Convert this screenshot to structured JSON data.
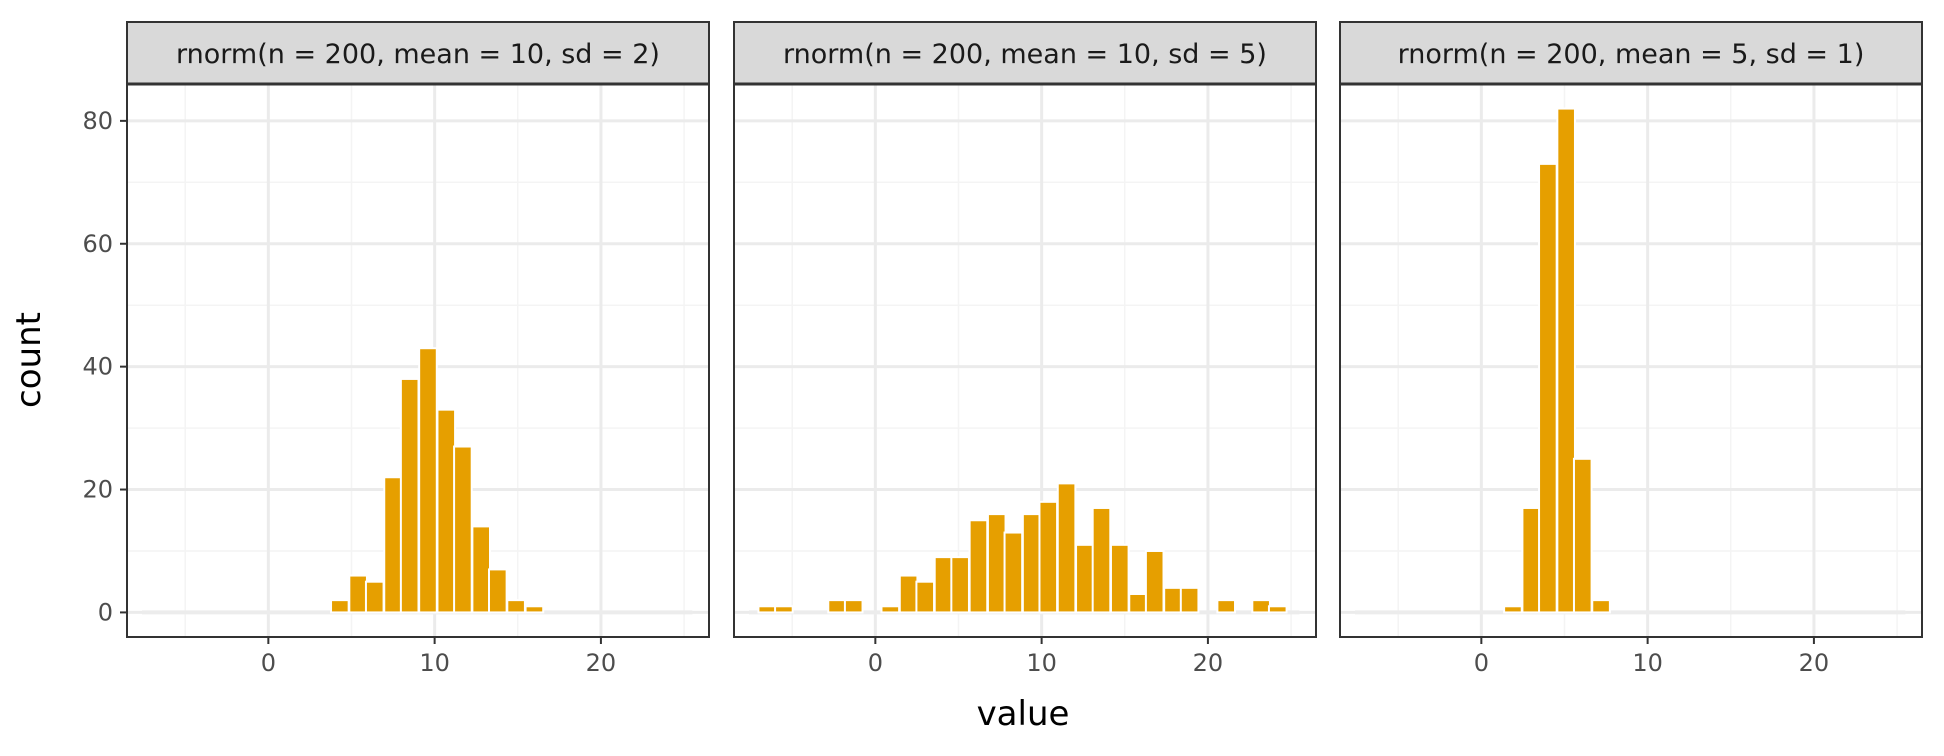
{
  "chart_data": {
    "type": "bar",
    "ylabel": "count",
    "xlabel": "value",
    "xlim": [
      -8.5,
      26.5
    ],
    "ylim": [
      -4,
      86
    ],
    "x_ticks": [
      0,
      10,
      20
    ],
    "y_ticks": [
      0,
      20,
      40,
      60,
      80
    ],
    "x_tick_labels": [
      "0",
      "10",
      "20"
    ],
    "y_tick_labels": [
      "0",
      "20",
      "40",
      "60",
      "80"
    ],
    "bin_width": 1.06,
    "grid": true,
    "colors": {
      "bar": "#E69F00",
      "bar_stroke": "#ffffff",
      "strip_fill": "#d9d9d9",
      "grid_major": "#ebebeb",
      "grid_minor": "#f4f4f4",
      "panel_border": "#333333"
    },
    "panels": [
      {
        "strip_label": "rnorm(n = 200, mean = 10, sd = 2)",
        "bins": [
          {
            "x": 4.3,
            "count": 2
          },
          {
            "x": 5.4,
            "count": 6
          },
          {
            "x": 6.4,
            "count": 5
          },
          {
            "x": 7.5,
            "count": 22
          },
          {
            "x": 8.5,
            "count": 38
          },
          {
            "x": 9.6,
            "count": 43
          },
          {
            "x": 10.7,
            "count": 33
          },
          {
            "x": 11.7,
            "count": 27
          },
          {
            "x": 12.8,
            "count": 14
          },
          {
            "x": 13.8,
            "count": 7
          },
          {
            "x": 14.9,
            "count": 2
          },
          {
            "x": 16.0,
            "count": 1
          }
        ]
      },
      {
        "strip_label": "rnorm(n = 200, mean = 10, sd = 5)",
        "bins": [
          {
            "x": -6.5,
            "count": 1
          },
          {
            "x": -5.5,
            "count": 1
          },
          {
            "x": -2.3,
            "count": 2
          },
          {
            "x": -1.3,
            "count": 2
          },
          {
            "x": 0.9,
            "count": 1
          },
          {
            "x": 2.0,
            "count": 6
          },
          {
            "x": 3.0,
            "count": 5
          },
          {
            "x": 4.1,
            "count": 9
          },
          {
            "x": 5.1,
            "count": 9
          },
          {
            "x": 6.2,
            "count": 15
          },
          {
            "x": 7.3,
            "count": 16
          },
          {
            "x": 8.3,
            "count": 13
          },
          {
            "x": 9.4,
            "count": 16
          },
          {
            "x": 10.4,
            "count": 18
          },
          {
            "x": 11.5,
            "count": 21
          },
          {
            "x": 12.6,
            "count": 11
          },
          {
            "x": 13.6,
            "count": 17
          },
          {
            "x": 14.7,
            "count": 11
          },
          {
            "x": 15.8,
            "count": 3
          },
          {
            "x": 16.8,
            "count": 10
          },
          {
            "x": 17.9,
            "count": 4
          },
          {
            "x": 18.9,
            "count": 4
          },
          {
            "x": 21.1,
            "count": 2
          },
          {
            "x": 23.2,
            "count": 2
          },
          {
            "x": 24.2,
            "count": 1
          }
        ]
      },
      {
        "strip_label": "rnorm(n = 200, mean = 5, sd = 1)",
        "bins": [
          {
            "x": 1.9,
            "count": 1
          },
          {
            "x": 3.0,
            "count": 17
          },
          {
            "x": 4.0,
            "count": 73
          },
          {
            "x": 5.1,
            "count": 82
          },
          {
            "x": 6.1,
            "count": 25
          },
          {
            "x": 7.2,
            "count": 2
          }
        ]
      }
    ]
  }
}
